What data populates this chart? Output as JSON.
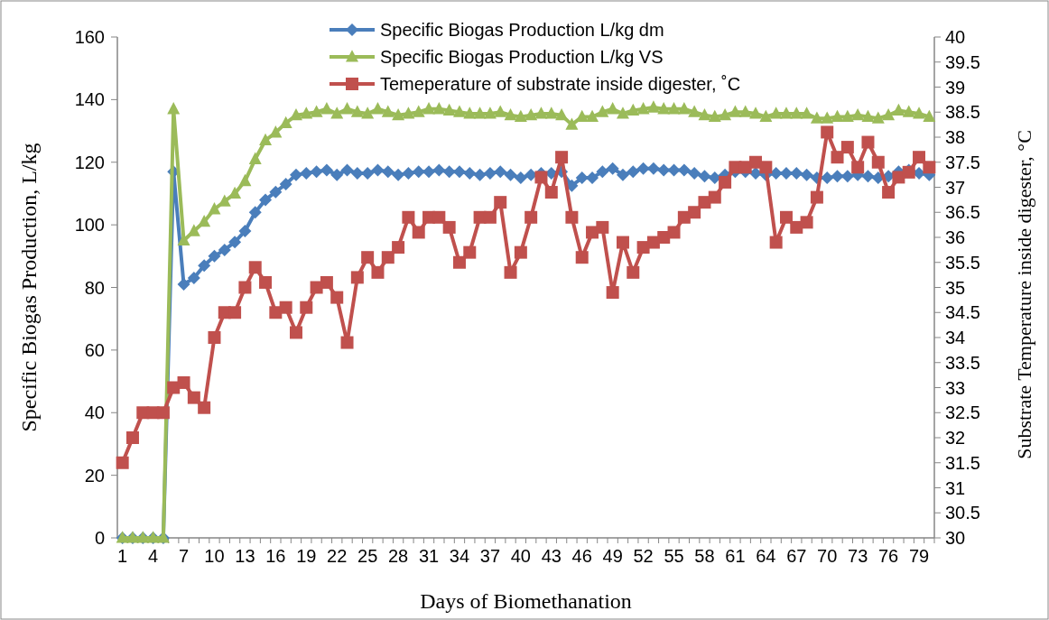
{
  "chart_data": {
    "type": "line",
    "xlabel": "Days of Biomethanation",
    "ylabel": "Specific Biogas Production, L/kg",
    "y2label": "Substrate Temperature inside digester,  °C",
    "categories": [
      "1",
      null,
      null,
      "4",
      null,
      null,
      "7",
      null,
      null,
      "10",
      null,
      null,
      "13",
      null,
      null,
      "16",
      null,
      null,
      "19",
      null,
      null,
      "22",
      null,
      null,
      "25",
      null,
      null,
      "28",
      null,
      null,
      "31",
      null,
      null,
      "34",
      null,
      null,
      "37",
      null,
      null,
      "40",
      null,
      null,
      "43",
      null,
      null,
      "46",
      null,
      null,
      "49",
      null,
      null,
      "52",
      null,
      null,
      "55",
      null,
      null,
      "58",
      null,
      null,
      "61",
      null,
      null,
      "64",
      null,
      null,
      "67",
      null,
      null,
      "70",
      null,
      null,
      "73",
      null,
      null,
      "76",
      null,
      null,
      "79",
      null
    ],
    "series": [
      {
        "name": "Specific Biogas Production L/kg dm",
        "color": "#4a7ebb",
        "marker": "diamond",
        "values": [
          0,
          0,
          0,
          0,
          0,
          117,
          81,
          83,
          87,
          90,
          92,
          94.5,
          98,
          104,
          108,
          110.5,
          113,
          116,
          116.5,
          117,
          117.5,
          116,
          117.5,
          116.5,
          116.5,
          117.5,
          117,
          116,
          116.5,
          117,
          117,
          117.5,
          117,
          117,
          116.5,
          116,
          116.5,
          117,
          116,
          115,
          116,
          116.5,
          116.5,
          117,
          112.5,
          115,
          115,
          117,
          118,
          116,
          117,
          118,
          118,
          117.5,
          117.5,
          117.5,
          116.5,
          115.5,
          115,
          116,
          117,
          117,
          116.5,
          116,
          116.5,
          116.5,
          116.5,
          116,
          115,
          115,
          115.5,
          115.5,
          116,
          115.5,
          115,
          115.5,
          117,
          117.5,
          116.5,
          116
        ]
      },
      {
        "name": "Specific Biogas Production L/kg VS",
        "color": "#9bbb59",
        "marker": "triangle",
        "values": [
          0,
          0,
          0,
          0,
          0,
          137,
          95,
          98,
          101,
          105,
          107.5,
          110,
          114,
          121,
          127,
          129.5,
          132.5,
          135,
          135.5,
          136,
          137,
          135.5,
          137,
          136,
          135.5,
          137,
          136,
          135,
          135.5,
          136,
          137,
          137,
          136.5,
          136,
          135.5,
          135.5,
          135.5,
          136,
          135,
          134.5,
          135,
          135.5,
          135.5,
          135,
          132,
          134.5,
          134.5,
          136,
          137,
          135.5,
          136.5,
          137,
          137.5,
          137,
          137,
          137,
          136,
          135,
          134.5,
          135,
          136,
          136,
          135.5,
          134.5,
          135.5,
          135.5,
          135.5,
          135.5,
          134,
          134,
          134.5,
          134.5,
          135,
          134.5,
          134,
          135,
          136.5,
          136,
          135.5,
          134.5
        ]
      },
      {
        "name": "Temeperature of substrate inside digester, ˚C",
        "color": "#c0504d",
        "marker": "square",
        "axis": "y2",
        "values": [
          31.5,
          32,
          32.5,
          32.5,
          32.5,
          33,
          33.1,
          32.8,
          32.6,
          34,
          34.5,
          34.5,
          35,
          35.4,
          35.1,
          34.5,
          34.6,
          34.1,
          34.6,
          35,
          35.1,
          34.8,
          33.9,
          35.2,
          35.6,
          35.3,
          35.6,
          35.8,
          36.4,
          36.1,
          36.4,
          36.4,
          36.2,
          35.5,
          35.7,
          36.4,
          36.4,
          36.7,
          35.3,
          35.7,
          36.4,
          37.2,
          36.9,
          37.6,
          36.4,
          35.6,
          36.1,
          36.2,
          34.9,
          35.9,
          35.3,
          35.8,
          35.9,
          36,
          36.1,
          36.4,
          36.5,
          36.7,
          36.8,
          37.1,
          37.4,
          37.4,
          37.5,
          37.4,
          35.9,
          36.4,
          36.2,
          36.3,
          36.8,
          38.1,
          37.6,
          37.8,
          37.4,
          37.9,
          37.5,
          36.9,
          37.2,
          37.3,
          37.6,
          37.4
        ]
      }
    ],
    "ylim": [
      0,
      160
    ],
    "yticks": [
      0,
      20,
      40,
      60,
      80,
      100,
      120,
      140,
      160
    ],
    "y2lim": [
      30,
      40
    ],
    "y2ticks": [
      30,
      30.5,
      31,
      31.5,
      32,
      32.5,
      33,
      33.5,
      34,
      34.5,
      35,
      35.5,
      36,
      36.5,
      37,
      37.5,
      38,
      38.5,
      39,
      39.5,
      40
    ],
    "legend": "top",
    "grid": false,
    "line_style": "solid"
  }
}
